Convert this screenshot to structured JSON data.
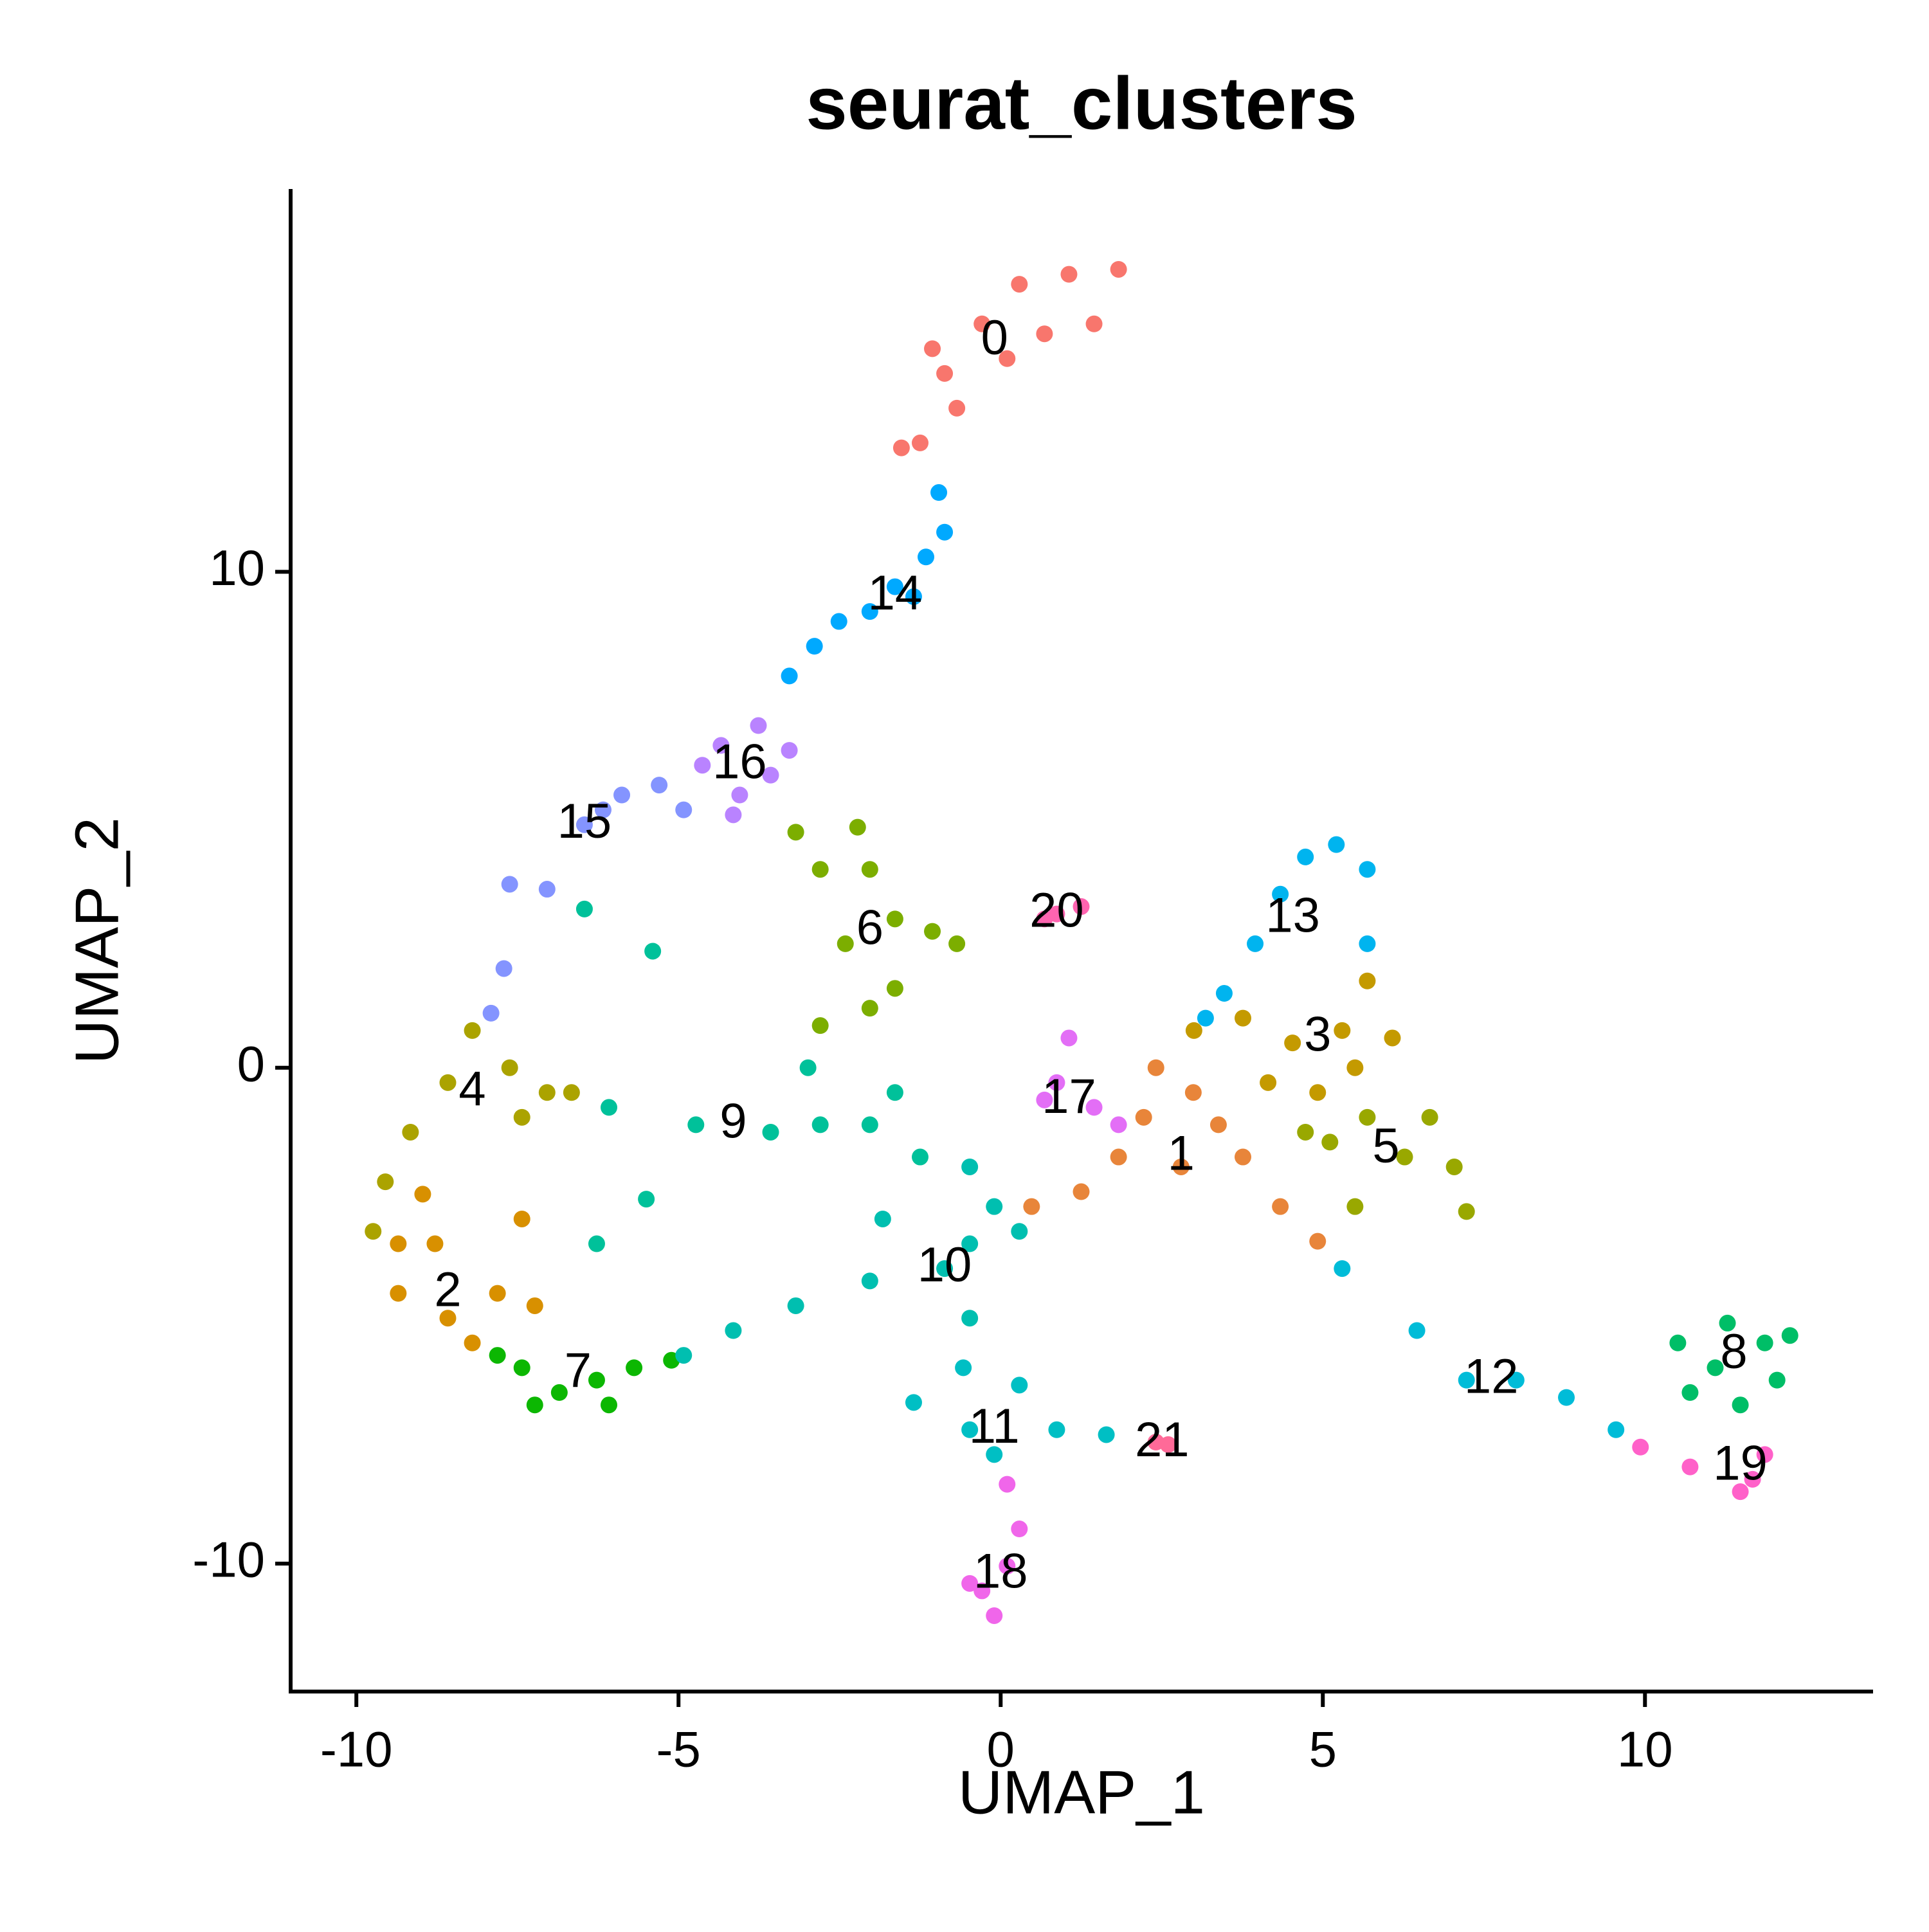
{
  "chart_data": {
    "type": "scatter",
    "title": "seurat_clusters",
    "x_label": "UMAP_1",
    "y_label": "UMAP_2",
    "xlim": [
      -11.02,
      13.54
    ],
    "ylim": [
      -12.58,
      17.72
    ],
    "xticks": [
      -10,
      -5,
      0,
      5,
      10
    ],
    "yticks": [
      -10,
      0,
      10
    ],
    "grid": false,
    "series": [
      {
        "name": "0",
        "color": "#F8766D",
        "x": [
          -1.25,
          -0.87,
          -0.29,
          0.29,
          1.06,
          1.83,
          1.45,
          0.68,
          -0.68,
          0.1,
          -1.54,
          -1.06
        ],
        "y": [
          12.6,
          14.0,
          15.0,
          15.8,
          16.0,
          16.1,
          15.0,
          14.8,
          13.3,
          14.3,
          12.5,
          14.5
        ]
      },
      {
        "name": "1",
        "color": "#E8853A",
        "x": [
          2.22,
          2.99,
          2.8,
          3.76,
          2.41,
          3.38,
          4.34,
          4.92,
          1.25,
          0.48,
          1.83
        ],
        "y": [
          -1.0,
          -0.5,
          -2.0,
          -1.8,
          0,
          -1.15,
          -2.8,
          -3.5,
          -2.5,
          -2.8,
          -1.8
        ]
      },
      {
        "name": "2",
        "color": "#D89000",
        "x": [
          -8.97,
          -8.78,
          -9.35,
          -8.58,
          -7.81,
          -7.43,
          -7.23,
          -8.2,
          -9.35
        ],
        "y": [
          -2.55,
          -3.55,
          -4.55,
          -5.05,
          -4.55,
          -3.05,
          -4.8,
          -5.55,
          -3.55
        ]
      },
      {
        "name": "3",
        "color": "#C49A00",
        "x": [
          3.76,
          4.53,
          5.3,
          6.08,
          5.5,
          4.15,
          3.0,
          5.69,
          4.92
        ],
        "y": [
          1.0,
          0.5,
          0.75,
          0.6,
          0,
          -0.3,
          0.75,
          1.75,
          -0.5
        ]
      },
      {
        "name": "4",
        "color": "#ABA300",
        "x": [
          -8.2,
          -8.58,
          -9.16,
          -7.62,
          -7.04,
          -6.66,
          -7.43,
          -9.55,
          -9.74
        ],
        "y": [
          0.75,
          -0.3,
          -1.3,
          0,
          -0.5,
          -0.5,
          -1.0,
          -2.3,
          -3.3
        ]
      },
      {
        "name": "5",
        "color": "#99A800",
        "x": [
          4.73,
          5.69,
          6.66,
          7.04,
          7.23,
          6.27,
          5.5,
          5.11
        ],
        "y": [
          -1.3,
          -1.0,
          -1.0,
          -2.0,
          -2.9,
          -1.8,
          -2.8,
          -1.5
        ]
      },
      {
        "name": "6",
        "color": "#7CAE00",
        "x": [
          -2.8,
          -2.22,
          -2.03,
          -1.64,
          -2.41,
          -1.06,
          -3.18,
          -2.8,
          -2.03,
          -1.64,
          -0.68
        ],
        "y": [
          4.0,
          4.85,
          4.0,
          3.0,
          2.5,
          2.75,
          4.75,
          0.85,
          1.2,
          1.6,
          2.5
        ]
      },
      {
        "name": "7",
        "color": "#0CB702",
        "x": [
          -7.43,
          -6.85,
          -6.27,
          -5.69,
          -6.08,
          -7.23,
          -5.11,
          -7.81
        ],
        "y": [
          -6.05,
          -6.55,
          -6.3,
          -6.05,
          -6.8,
          -6.8,
          -5.9,
          -5.8
        ]
      },
      {
        "name": "8",
        "color": "#00BE67",
        "x": [
          10.51,
          11.09,
          11.86,
          12.25,
          11.48,
          10.7,
          12.05,
          11.28
        ],
        "y": [
          -5.55,
          -6.05,
          -5.55,
          -5.4,
          -6.8,
          -6.55,
          -6.3,
          -5.15
        ]
      },
      {
        "name": "9",
        "color": "#00C19A",
        "x": [
          -6.46,
          -5.4,
          -6.08,
          -4.73,
          -3.57,
          -2.8,
          -2.03,
          -1.64,
          -2.99,
          -6.27,
          -5.5,
          -1.25
        ],
        "y": [
          3.2,
          2.35,
          -0.8,
          -1.15,
          -1.3,
          -1.15,
          -1.15,
          -0.5,
          0,
          -3.55,
          -2.65,
          -1.8
        ]
      },
      {
        "name": "10",
        "color": "#00BFB0",
        "x": [
          -0.48,
          -0.1,
          -0.48,
          -0.87,
          -2.03,
          -3.18,
          -4.15,
          -4.92,
          0.29,
          -0.48,
          -1.83
        ],
        "y": [
          -2.0,
          -2.8,
          -3.55,
          -4.05,
          -4.3,
          -4.8,
          -5.3,
          -5.8,
          -3.3,
          -5.05,
          -3.05
        ]
      },
      {
        "name": "11",
        "color": "#00BFC4",
        "x": [
          -0.58,
          -1.35,
          -0.48,
          0.29,
          0.87,
          1.64,
          -0.1
        ],
        "y": [
          -6.05,
          -6.75,
          -7.3,
          -6.4,
          -7.3,
          -7.4,
          -7.8
        ]
      },
      {
        "name": "12",
        "color": "#00BCD8",
        "x": [
          5.3,
          6.46,
          7.23,
          8.0,
          8.78,
          9.55
        ],
        "y": [
          -4.05,
          -5.3,
          -6.3,
          -6.3,
          -6.65,
          -7.3
        ]
      },
      {
        "name": "13",
        "color": "#00B4EF",
        "x": [
          4.73,
          5.21,
          5.69,
          5.69,
          4.34,
          3.95,
          3.47,
          3.18
        ],
        "y": [
          4.25,
          4.5,
          4.0,
          2.5,
          3.5,
          2.5,
          1.5,
          1.0
        ]
      },
      {
        "name": "14",
        "color": "#00A9FF",
        "x": [
          -0.96,
          -0.87,
          -1.16,
          -1.64,
          -2.03,
          -2.51,
          -2.89,
          -3.28,
          -1.35
        ],
        "y": [
          11.6,
          10.8,
          10.3,
          9.7,
          9.2,
          9.0,
          8.5,
          7.9,
          9.5
        ]
      },
      {
        "name": "15",
        "color": "#8494FF",
        "x": [
          -7.91,
          -7.71,
          -7.62,
          -7.04,
          -6.46,
          -5.88,
          -5.3,
          -4.92,
          -6.17
        ],
        "y": [
          1.1,
          2.0,
          3.7,
          3.6,
          4.9,
          5.5,
          5.7,
          5.2,
          5.2
        ]
      },
      {
        "name": "16",
        "color": "#B983FF",
        "x": [
          -4.34,
          -3.76,
          -4.05,
          -3.57,
          -4.63,
          -3.28,
          -4.15
        ],
        "y": [
          6.5,
          6.9,
          5.5,
          5.9,
          6.1,
          6.4,
          5.1
        ]
      },
      {
        "name": "17",
        "color": "#E36EF6",
        "x": [
          1.06,
          0.87,
          1.45,
          1.83,
          0.68
        ],
        "y": [
          0.6,
          -0.3,
          -0.8,
          -1.15,
          -0.65
        ]
      },
      {
        "name": "18",
        "color": "#F066EA",
        "x": [
          0.1,
          0.29,
          0.1,
          -0.29,
          -0.1,
          -0.48
        ],
        "y": [
          -8.4,
          -9.3,
          -10.05,
          -10.55,
          -11.05,
          -10.4
        ]
      },
      {
        "name": "19",
        "color": "#FF61C9",
        "x": [
          9.93,
          10.7,
          11.48,
          11.67,
          11.86
        ],
        "y": [
          -7.65,
          -8.05,
          -8.55,
          -8.3,
          -7.8
        ]
      },
      {
        "name": "20",
        "color": "#FF64B0",
        "x": [
          0.87,
          1.25,
          0.68
        ],
        "y": [
          3.1,
          3.25,
          3.0
        ]
      },
      {
        "name": "21",
        "color": "#FF6A98",
        "x": [
          2.41,
          2.6
        ],
        "y": [
          -7.55,
          -7.6
        ]
      }
    ]
  }
}
